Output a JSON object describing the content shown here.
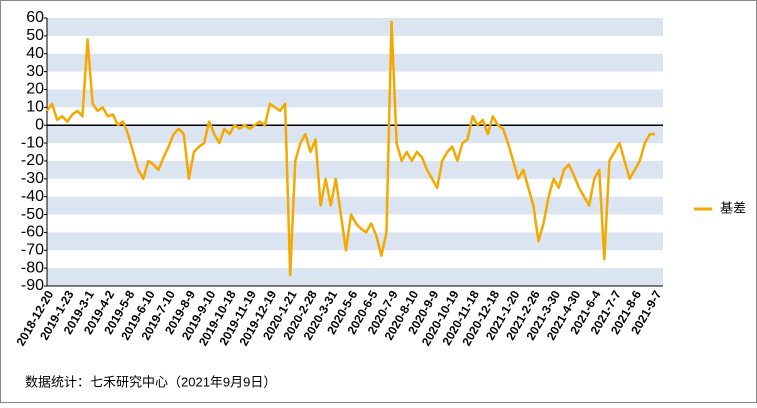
{
  "chart_data": {
    "type": "line",
    "categories": [
      "2018-12-20",
      null,
      null,
      null,
      "2019-1-23",
      null,
      null,
      null,
      "2019-3-1",
      null,
      null,
      null,
      "2019-4-2",
      null,
      null,
      null,
      "2019-5-8",
      null,
      null,
      null,
      "2019-6-10",
      null,
      null,
      null,
      "2019-7-10",
      null,
      null,
      null,
      "2019-8-9",
      null,
      null,
      null,
      "2019-9-10",
      null,
      null,
      null,
      "2019-10-18",
      null,
      null,
      null,
      "2019-11-19",
      null,
      null,
      null,
      "2019-12-19",
      null,
      null,
      null,
      "2020-1-21",
      null,
      null,
      null,
      "2020-2-28",
      null,
      null,
      null,
      "2020-3-31",
      null,
      null,
      null,
      "2020-5-6",
      null,
      null,
      null,
      "2020-6-5",
      null,
      null,
      null,
      "2020-7-9",
      null,
      null,
      null,
      "2020-8-10",
      null,
      null,
      null,
      "2020-9-9",
      null,
      null,
      null,
      "2020-10-19",
      null,
      null,
      null,
      "2020-11-18",
      null,
      null,
      null,
      "2020-12-18",
      null,
      null,
      null,
      "2021-1-20",
      null,
      null,
      null,
      "2021-2-26",
      null,
      null,
      null,
      "2021-3-30",
      null,
      null,
      null,
      "2021-4-30",
      null,
      null,
      null,
      "2021-6-4",
      null,
      null,
      null,
      "2021-7-7",
      null,
      null,
      null,
      "2021-8-6",
      null,
      null,
      null,
      "2021-9-7"
    ],
    "series": [
      {
        "name": "基差",
        "color": "#f5a800",
        "values": [
          8,
          12,
          3,
          5,
          2,
          6,
          8,
          5,
          48,
          12,
          8,
          10,
          5,
          6,
          0,
          2,
          -5,
          -15,
          -25,
          -30,
          -20,
          -22,
          -25,
          -18,
          -12,
          -5,
          -2,
          -5,
          -30,
          -15,
          -12,
          -10,
          2,
          -5,
          -10,
          -2,
          -5,
          0,
          -2,
          0,
          -2,
          0,
          2,
          0,
          12,
          10,
          8,
          12,
          -84,
          -20,
          -10,
          -5,
          -15,
          -8,
          -45,
          -30,
          -45,
          -30,
          -50,
          -70,
          -50,
          -55,
          -58,
          -60,
          -55,
          -62,
          -73,
          -60,
          58,
          -10,
          -20,
          -15,
          -20,
          -15,
          -18,
          -25,
          -30,
          -35,
          -20,
          -15,
          -12,
          -20,
          -10,
          -8,
          5,
          0,
          3,
          -5,
          5,
          0,
          -2,
          -10,
          -20,
          -30,
          -25,
          -35,
          -45,
          -65,
          -55,
          -40,
          -30,
          -35,
          -25,
          -22,
          -28,
          -35,
          -40,
          -45,
          -30,
          -25,
          -75,
          -20,
          -15,
          -10,
          -20,
          -30,
          -25,
          -20,
          -10,
          -5,
          -5
        ]
      }
    ],
    "ylim": [
      -90,
      60
    ],
    "yticks": [
      -90,
      -80,
      -70,
      -60,
      -50,
      -40,
      -30,
      -20,
      -10,
      0,
      10,
      20,
      30,
      40,
      50,
      60
    ],
    "grid": "bands",
    "legend": "right",
    "source": "数据统计：七禾研究中心（2021年9月9日）"
  }
}
